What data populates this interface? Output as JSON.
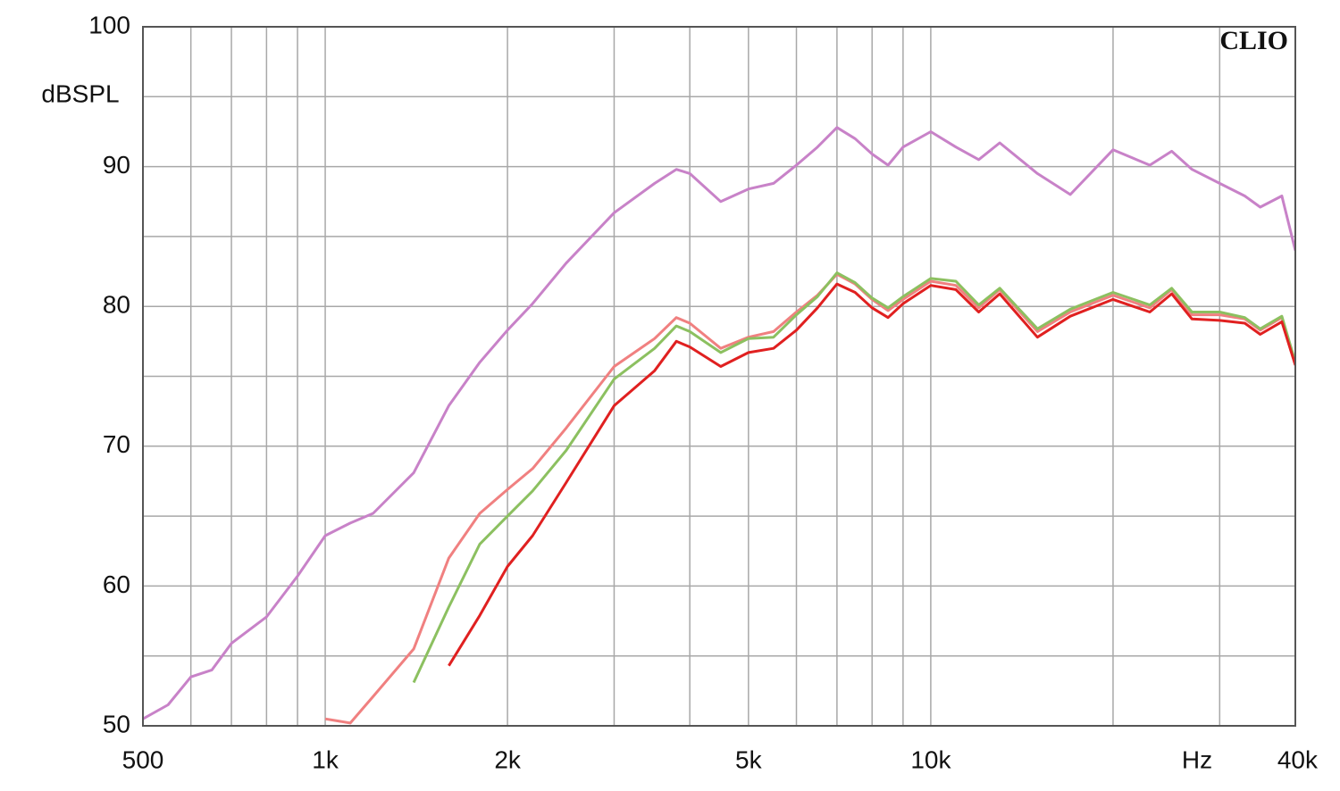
{
  "chart_data": {
    "type": "line",
    "watermark": "CLIO",
    "ylabel": "dBSPL",
    "xlabel": "Hz",
    "xscale": "log",
    "grid": true,
    "x": [
      500,
      550,
      600,
      650,
      700,
      800,
      900,
      1000,
      1100,
      1200,
      1400,
      1600,
      1800,
      2000,
      2200,
      2500,
      3000,
      3500,
      3800,
      4000,
      4500,
      5000,
      5500,
      6000,
      6500,
      7000,
      7500,
      8000,
      8500,
      9000,
      10000,
      11000,
      12000,
      13000,
      15000,
      17000,
      20000,
      23000,
      25000,
      27000,
      30000,
      33000,
      35000,
      38000,
      40000
    ],
    "series": [
      {
        "color": "#c882c8",
        "values": [
          50.5,
          51.5,
          53.5,
          54,
          55.9,
          57.8,
          60.7,
          63.6,
          64.5,
          65.2,
          68.1,
          72.9,
          76,
          78.3,
          80.2,
          83.1,
          86.7,
          88.8,
          89.8,
          89.5,
          87.5,
          88.4,
          88.8,
          90.1,
          91.4,
          92.8,
          92,
          90.9,
          90.1,
          91.4,
          92.5,
          91.4,
          90.5,
          91.7,
          89.5,
          88,
          91.2,
          90.1,
          91.1,
          89.8,
          88.8,
          87.9,
          87.1,
          87.9,
          84
        ]
      },
      {
        "color": "#f08080",
        "values": [
          null,
          null,
          null,
          null,
          null,
          null,
          null,
          50.5,
          50.2,
          52.1,
          55.5,
          62,
          65.2,
          66.9,
          68.4,
          71.3,
          75.7,
          77.7,
          79.2,
          78.8,
          77,
          77.8,
          78.2,
          79.6,
          80.8,
          82.3,
          81.6,
          80.5,
          79.7,
          80.5,
          81.8,
          81.5,
          79.9,
          81.2,
          78.2,
          79.6,
          80.8,
          79.9,
          81.2,
          79.4,
          79.4,
          79.1,
          78.3,
          79.2,
          76
        ]
      },
      {
        "color": "#8cc060",
        "values": [
          null,
          null,
          null,
          null,
          null,
          null,
          null,
          null,
          null,
          null,
          53.1,
          58.5,
          63,
          65,
          66.8,
          69.7,
          74.8,
          77,
          78.6,
          78.2,
          76.7,
          77.7,
          77.8,
          79.4,
          80.7,
          82.4,
          81.7,
          80.6,
          79.9,
          80.7,
          82,
          81.8,
          80.1,
          81.3,
          78.4,
          79.8,
          81,
          80.1,
          81.3,
          79.6,
          79.6,
          79.2,
          78.4,
          79.3,
          76
        ]
      },
      {
        "color": "#e02020",
        "values": [
          null,
          null,
          null,
          null,
          null,
          null,
          null,
          null,
          null,
          null,
          null,
          54.3,
          57.9,
          61.4,
          63.6,
          67.4,
          72.9,
          75.4,
          77.5,
          77.1,
          75.7,
          76.7,
          77,
          78.3,
          79.9,
          81.6,
          81,
          79.9,
          79.2,
          80.2,
          81.5,
          81.2,
          79.6,
          80.9,
          77.8,
          79.3,
          80.5,
          79.6,
          80.9,
          79.1,
          79,
          78.8,
          78,
          78.9,
          75.8
        ]
      }
    ],
    "xlim": [
      500,
      40000
    ],
    "xticks": [
      500,
      {
        "value": 1000,
        "label": "1k"
      },
      {
        "value": 2000,
        "label": "2k"
      },
      {
        "value": 5000,
        "label": "5k"
      },
      {
        "value": 10000,
        "label": "10k"
      },
      {
        "value": 40000,
        "label": "40k"
      }
    ],
    "xminorticks": [
      600,
      700,
      800,
      900,
      3000,
      4000,
      6000,
      7000,
      8000,
      9000,
      20000,
      30000
    ],
    "ylim": [
      50,
      100
    ],
    "yticks": [
      50,
      60,
      70,
      80,
      90,
      100
    ],
    "yminorticks": [
      55,
      65,
      75,
      85,
      95
    ]
  }
}
